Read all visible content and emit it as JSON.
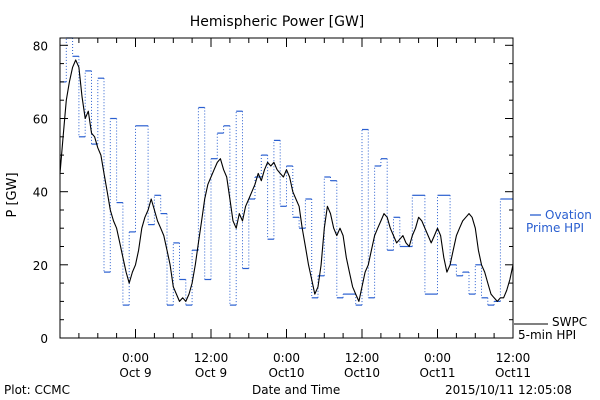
{
  "chart_data": {
    "type": "line",
    "title": "Hemispheric Power [GW]",
    "ylabel": "P [GW]",
    "xlabel": "Date and Time",
    "ylim": [
      0,
      82
    ],
    "xlim_hours": [
      -12,
      60
    ],
    "yticks": [
      0,
      20,
      40,
      60,
      80
    ],
    "xticks": [
      {
        "hour": 0,
        "time": "0:00",
        "date": "Oct 9"
      },
      {
        "hour": 12,
        "time": "12:00",
        "date": "Oct 9"
      },
      {
        "hour": 24,
        "time": "0:00",
        "date": "Oct10"
      },
      {
        "hour": 36,
        "time": "12:00",
        "date": "Oct10"
      },
      {
        "hour": 48,
        "time": "0:00",
        "date": "Oct11"
      },
      {
        "hour": 60,
        "time": "12:00",
        "date": "Oct11"
      }
    ],
    "series": [
      {
        "name": "SWPC 5-min HPI",
        "color": "#000000",
        "style": "solid",
        "points": [
          [
            -12,
            45
          ],
          [
            -11.5,
            55
          ],
          [
            -11,
            65
          ],
          [
            -10.5,
            70
          ],
          [
            -10,
            74
          ],
          [
            -9.5,
            76
          ],
          [
            -9,
            74
          ],
          [
            -8.5,
            66
          ],
          [
            -8,
            60
          ],
          [
            -7.5,
            62
          ],
          [
            -7,
            56
          ],
          [
            -6.5,
            55
          ],
          [
            -6,
            52
          ],
          [
            -5.5,
            50
          ],
          [
            -5,
            45
          ],
          [
            -4.5,
            40
          ],
          [
            -4,
            35
          ],
          [
            -3.5,
            32
          ],
          [
            -3,
            30
          ],
          [
            -2.5,
            26
          ],
          [
            -2,
            22
          ],
          [
            -1.5,
            18
          ],
          [
            -1,
            15
          ],
          [
            -0.5,
            18
          ],
          [
            0,
            20
          ],
          [
            0.5,
            24
          ],
          [
            1,
            30
          ],
          [
            1.5,
            33
          ],
          [
            2,
            35
          ],
          [
            2.5,
            38
          ],
          [
            3,
            35
          ],
          [
            3.5,
            32
          ],
          [
            4,
            30
          ],
          [
            4.5,
            28
          ],
          [
            5,
            24
          ],
          [
            5.5,
            20
          ],
          [
            6,
            14
          ],
          [
            6.5,
            12
          ],
          [
            7,
            10
          ],
          [
            7.5,
            11
          ],
          [
            8,
            10
          ],
          [
            8.5,
            12
          ],
          [
            9,
            15
          ],
          [
            9.5,
            20
          ],
          [
            10,
            26
          ],
          [
            10.5,
            32
          ],
          [
            11,
            38
          ],
          [
            11.5,
            42
          ],
          [
            12,
            44
          ],
          [
            12.5,
            46
          ],
          [
            13,
            48
          ],
          [
            13.5,
            49
          ],
          [
            14,
            46
          ],
          [
            14.5,
            44
          ],
          [
            15,
            38
          ],
          [
            15.5,
            32
          ],
          [
            16,
            30
          ],
          [
            16.5,
            34
          ],
          [
            17,
            32
          ],
          [
            17.5,
            36
          ],
          [
            18,
            38
          ],
          [
            18.5,
            40
          ],
          [
            19,
            42
          ],
          [
            19.5,
            45
          ],
          [
            20,
            43
          ],
          [
            20.5,
            46
          ],
          [
            21,
            48
          ],
          [
            21.5,
            47
          ],
          [
            22,
            48
          ],
          [
            22.5,
            46
          ],
          [
            23,
            45
          ],
          [
            23.5,
            44
          ],
          [
            24,
            46
          ],
          [
            24.5,
            44
          ],
          [
            25,
            40
          ],
          [
            25.5,
            38
          ],
          [
            26,
            36
          ],
          [
            26.5,
            30
          ],
          [
            27,
            25
          ],
          [
            27.5,
            20
          ],
          [
            28,
            16
          ],
          [
            28.5,
            12
          ],
          [
            29,
            14
          ],
          [
            29.5,
            20
          ],
          [
            30,
            30
          ],
          [
            30.5,
            36
          ],
          [
            31,
            34
          ],
          [
            31.5,
            30
          ],
          [
            32,
            28
          ],
          [
            32.5,
            30
          ],
          [
            33,
            28
          ],
          [
            33.5,
            22
          ],
          [
            34,
            18
          ],
          [
            34.5,
            14
          ],
          [
            35,
            12
          ],
          [
            35.5,
            10
          ],
          [
            36,
            14
          ],
          [
            36.5,
            18
          ],
          [
            37,
            20
          ],
          [
            37.5,
            24
          ],
          [
            38,
            28
          ],
          [
            38.5,
            30
          ],
          [
            39,
            32
          ],
          [
            39.5,
            34
          ],
          [
            40,
            33
          ],
          [
            40.5,
            30
          ],
          [
            41,
            28
          ],
          [
            41.5,
            26
          ],
          [
            42,
            27
          ],
          [
            42.5,
            28
          ],
          [
            43,
            26
          ],
          [
            43.5,
            25
          ],
          [
            44,
            28
          ],
          [
            44.5,
            30
          ],
          [
            45,
            33
          ],
          [
            45.5,
            32
          ],
          [
            46,
            30
          ],
          [
            46.5,
            28
          ],
          [
            47,
            26
          ],
          [
            47.5,
            28
          ],
          [
            48,
            30
          ],
          [
            48.5,
            28
          ],
          [
            49,
            22
          ],
          [
            49.5,
            18
          ],
          [
            50,
            20
          ],
          [
            50.5,
            24
          ],
          [
            51,
            28
          ],
          [
            51.5,
            30
          ],
          [
            52,
            32
          ],
          [
            52.5,
            33
          ],
          [
            53,
            34
          ],
          [
            53.5,
            33
          ],
          [
            54,
            30
          ],
          [
            54.5,
            24
          ],
          [
            55,
            20
          ],
          [
            55.5,
            18
          ],
          [
            56,
            15
          ],
          [
            56.5,
            12
          ],
          [
            57,
            11
          ],
          [
            57.5,
            10
          ],
          [
            58,
            11
          ],
          [
            58.5,
            11
          ],
          [
            59,
            13
          ],
          [
            59.5,
            16
          ],
          [
            60,
            20
          ]
        ]
      },
      {
        "name": "Ovation Prime HPI",
        "color": "#2a5fd0",
        "style": "dotted-step",
        "steps": [
          [
            -12,
            70
          ],
          [
            -11,
            82
          ],
          [
            -10,
            77
          ],
          [
            -9,
            55
          ],
          [
            -8,
            73
          ],
          [
            -7,
            53
          ],
          [
            -6,
            71
          ],
          [
            -5,
            18
          ],
          [
            -4,
            60
          ],
          [
            -3,
            37
          ],
          [
            -2,
            9
          ],
          [
            -1,
            29
          ],
          [
            0,
            58
          ],
          [
            2,
            31
          ],
          [
            3,
            39
          ],
          [
            4,
            34
          ],
          [
            5,
            9
          ],
          [
            6,
            26
          ],
          [
            7,
            16
          ],
          [
            8,
            9
          ],
          [
            9,
            24
          ],
          [
            10,
            63
          ],
          [
            11,
            16
          ],
          [
            12,
            49
          ],
          [
            13,
            56
          ],
          [
            14,
            58
          ],
          [
            15,
            9
          ],
          [
            16,
            62
          ],
          [
            17,
            19
          ],
          [
            18,
            38
          ],
          [
            19,
            44
          ],
          [
            20,
            50
          ],
          [
            21,
            27
          ],
          [
            22,
            54
          ],
          [
            23,
            36
          ],
          [
            24,
            47
          ],
          [
            25,
            33
          ],
          [
            26,
            30
          ],
          [
            27,
            38
          ],
          [
            28,
            11
          ],
          [
            29,
            17
          ],
          [
            30,
            44
          ],
          [
            31,
            43
          ],
          [
            32,
            11
          ],
          [
            33,
            12
          ],
          [
            35,
            9
          ],
          [
            36,
            57
          ],
          [
            37,
            11
          ],
          [
            38,
            47
          ],
          [
            39,
            49
          ],
          [
            40,
            24
          ],
          [
            41,
            33
          ],
          [
            42,
            25
          ],
          [
            44,
            39
          ],
          [
            46,
            12
          ],
          [
            48,
            39
          ],
          [
            50,
            20
          ],
          [
            51,
            17
          ],
          [
            52,
            18
          ],
          [
            53,
            12
          ],
          [
            54,
            20
          ],
          [
            55,
            11
          ],
          [
            56,
            9
          ],
          [
            57,
            10
          ],
          [
            58,
            38
          ],
          [
            60,
            38
          ]
        ]
      }
    ]
  },
  "legend": {
    "ovation_line1": "Ovation",
    "ovation_line2": "Prime HPI",
    "swpc_line1": "SWPC",
    "swpc_line2": "5-min HPI"
  },
  "footer": {
    "left": "Plot: CCMC",
    "center": "Date and Time",
    "right": "2015/10/11 12:05:08"
  }
}
